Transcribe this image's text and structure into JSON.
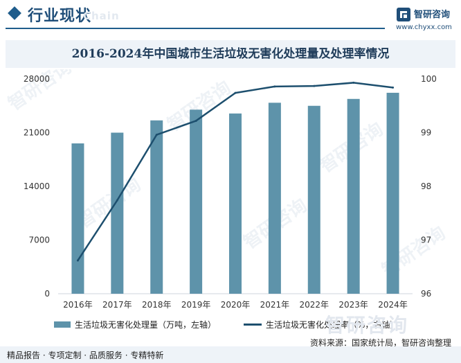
{
  "header": {
    "section_title": "行业现状",
    "section_watermark": "Chain",
    "logo_name": "智研咨询",
    "logo_url": "www.chyxx.com"
  },
  "chart_data": {
    "type": "bar+line",
    "title": "2016-2024年中国城市生活垃圾无害化处理量及处理率情况",
    "categories": [
      "2016年",
      "2017年",
      "2018年",
      "2019年",
      "2020年",
      "2021年",
      "2022年",
      "2023年",
      "2024年"
    ],
    "series": [
      {
        "name": "生活垃圾无害化处理量（万吨，左轴）",
        "kind": "bar",
        "axis": "left",
        "values": [
          19600,
          21000,
          22600,
          24000,
          23500,
          24900,
          24500,
          25400,
          26200
        ]
      },
      {
        "name": "生活垃圾无害化处理率（%，右轴）",
        "kind": "line",
        "axis": "right",
        "values": [
          96.62,
          97.74,
          98.96,
          99.22,
          99.74,
          99.86,
          99.87,
          99.93,
          99.84
        ]
      }
    ],
    "left_axis": {
      "min": 0,
      "max": 28000,
      "ticks": [
        "0",
        "7000",
        "14000",
        "21000",
        "28000"
      ]
    },
    "right_axis": {
      "min": 96,
      "max": 100,
      "ticks": [
        "96",
        "97",
        "98",
        "99",
        "100"
      ]
    },
    "colors": {
      "bar": "#5e93aa",
      "line": "#1d4f6e"
    },
    "legend_position": "bottom"
  },
  "legend": {
    "bar_label": "生活垃圾无害化处理量（万吨，左轴）",
    "line_label": "生活垃圾无害化处理率（%，右轴）"
  },
  "source": "资料来源：国家统计局，智研咨询整理",
  "footer": {
    "text": "精品报告 · 专项定制 · 品质服务 · 专精特新",
    "watermark": "智研咨询"
  }
}
